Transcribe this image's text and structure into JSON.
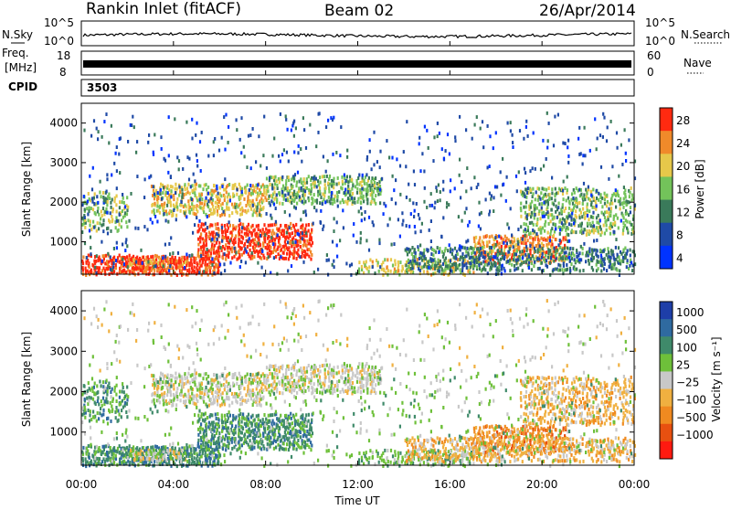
{
  "header": {
    "station": "Rankin Inlet (fitACF)",
    "beam": "Beam 02",
    "date": "26/Apr/2014"
  },
  "top_panels": {
    "nsky_label": "N.Sky",
    "nsky_ticks": [
      "10^5",
      "10^0"
    ],
    "nsearch_label": "N.Search",
    "freq_label": "Freq.",
    "freq_unit": "[MHz]",
    "freq_ticks": [
      "18",
      "8"
    ],
    "nave_label": "Nave",
    "nave_ticks": [
      "60",
      "0"
    ],
    "cpid_label": "CPID",
    "cpid_value": "3503"
  },
  "chart_data": [
    {
      "type": "heatmap",
      "panel": "power",
      "ylabel": "Slant Range [km]",
      "yticks": [
        "1000",
        "2000",
        "3000",
        "4000"
      ],
      "ylim": [
        180,
        4500
      ],
      "xlim_hours": [
        0,
        24
      ],
      "colorbar_label": "Power [dB]",
      "colorbar_ticks": [
        "4",
        "8",
        "12",
        "16",
        "20",
        "24",
        "28"
      ],
      "colors": [
        "#0033ff",
        "#1f4aa6",
        "#3a7a5a",
        "#73c35a",
        "#e6c84a",
        "#f08a2a",
        "#ff2a10"
      ],
      "grid": false
    },
    {
      "type": "heatmap",
      "panel": "velocity",
      "ylabel": "Slant Range [km]",
      "yticks": [
        "1000",
        "2000",
        "3000",
        "4000"
      ],
      "ylim": [
        180,
        4500
      ],
      "xlim_hours": [
        0,
        24
      ],
      "xlabel": "Time UT",
      "xticks": [
        "00:00",
        "04:00",
        "08:00",
        "12:00",
        "16:00",
        "20:00",
        "00:00"
      ],
      "colorbar_label": "Velocity [m s⁻¹]",
      "colorbar_ticks": [
        "1000",
        "500",
        "100",
        "25",
        "−25",
        "−100",
        "−500",
        "−1000"
      ],
      "colors": [
        "#1e3ea8",
        "#2f6aa0",
        "#3f8a6a",
        "#6ec03a",
        "#c8c8c8",
        "#f0b040",
        "#f08a20",
        "#e85010",
        "#ff1a10"
      ],
      "grid": false
    }
  ]
}
